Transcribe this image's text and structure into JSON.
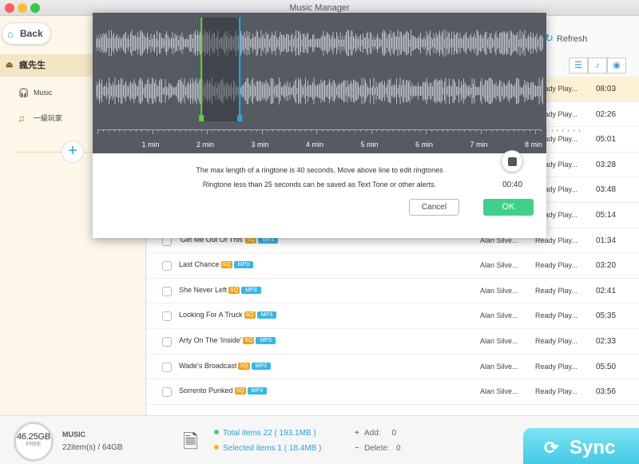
{
  "window": {
    "title": "Music Manager"
  },
  "sidebar": {
    "back_label": "Back",
    "device_name": "瘋先生",
    "items": [
      {
        "label": "Music",
        "icon": "headphones-icon"
      },
      {
        "label": "一級玩家",
        "icon": "playlist-icon"
      }
    ]
  },
  "header": {
    "refresh_label": "Refresh"
  },
  "list": {
    "rows": [
      {
        "name": "",
        "artist": "",
        "status": "Ready Play...",
        "duration": "08:03",
        "selected": true
      },
      {
        "name": "",
        "artist": "",
        "status": "Ready Play...",
        "duration": "02:26",
        "selected": false
      },
      {
        "name": "",
        "artist": "",
        "status": "Ready Play...",
        "duration": "05:01",
        "selected": false
      },
      {
        "name": "",
        "artist": "",
        "status": "Ready Play...",
        "duration": "03:28",
        "selected": false
      },
      {
        "name": "",
        "artist": "",
        "status": "Ready Play...",
        "duration": "03:48",
        "selected": false
      },
      {
        "name": "",
        "artist": "",
        "status": "Ready Play...",
        "duration": "05:14",
        "selected": false
      },
      {
        "name": "'Get Me Out Of This'",
        "artist": "Alan Silve...",
        "status": "Ready Play...",
        "duration": "01:34",
        "selected": false
      },
      {
        "name": "Last Chance",
        "artist": "Alan Silve...",
        "status": "Ready Play...",
        "duration": "03:20",
        "selected": false
      },
      {
        "name": "She Never Left",
        "artist": "Alan Silve...",
        "status": "Ready Play...",
        "duration": "02:41",
        "selected": false
      },
      {
        "name": "Looking For A Truck",
        "artist": "Alan Silve...",
        "status": "Ready Play...",
        "duration": "05:35",
        "selected": false
      },
      {
        "name": "Arty On The 'Inside'",
        "artist": "Alan Silve...",
        "status": "Ready Play...",
        "duration": "02:33",
        "selected": false
      },
      {
        "name": "Wade's Broadcast",
        "artist": "Alan Silve...",
        "status": "Ready Play...",
        "duration": "05:50",
        "selected": false
      },
      {
        "name": "Sorrento Punked",
        "artist": "Alan Silve...",
        "status": "Ready Play...",
        "duration": "03:56",
        "selected": false
      }
    ],
    "tag_sq": "SQ",
    "tag_mp3": "MP3"
  },
  "ringtone_editor": {
    "ruler_ticks": [
      "1 min",
      "2 min",
      "3 min",
      "4 min",
      "5 min",
      "6 min",
      "7 min",
      "8 min"
    ],
    "message_line1": "The max length of a ringtone is 40 seconds. Move above line to edit ringtones",
    "message_line2": "Ringtone less than 25 seconds can be saved as Text Tone or other alerts.",
    "timer": "00:40",
    "cancel_label": "Cancel",
    "ok_label": "OK",
    "start_marker_min": 1.9,
    "end_marker_min": 2.6,
    "colors": {
      "start": "#5fd23a",
      "end": "#2aa8e8",
      "ok": "#3fd08a"
    }
  },
  "footer": {
    "storage_free": "46.25GB",
    "storage_free_label": "FREE",
    "category": "MUSIC",
    "category_count": "22item(s) / 64GB",
    "total_items": "Total items 22 ( 193.1MB )",
    "selected_items": "Selected items 1 ( 18.4MB )",
    "add_label": "Add:",
    "add_value": "0",
    "delete_label": "Delete:",
    "delete_value": "0",
    "sync_label": "Sync"
  }
}
